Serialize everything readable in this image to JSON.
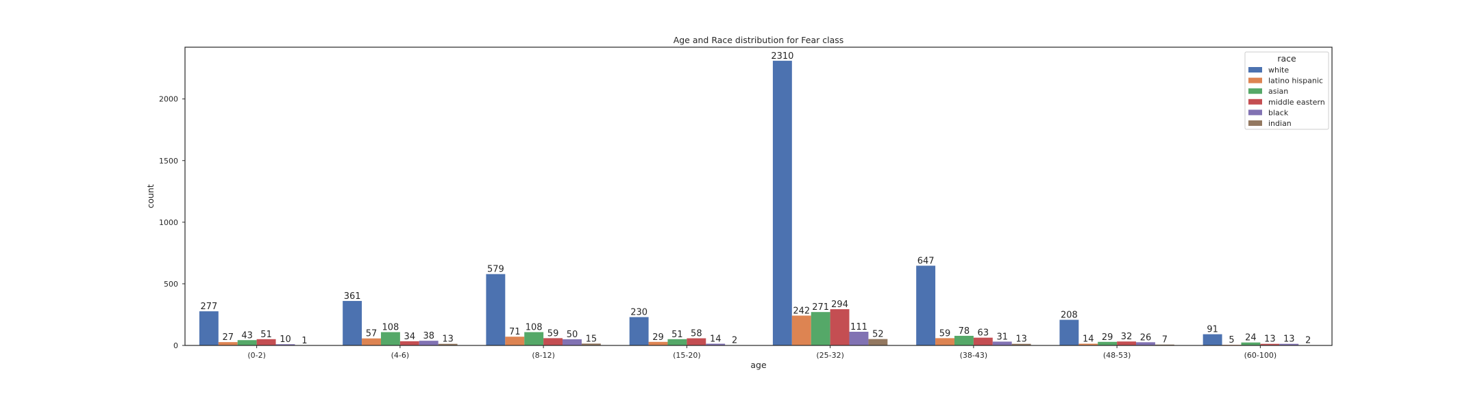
{
  "chart_data": {
    "type": "bar",
    "title": "Age and Race distribution for Fear class",
    "xlabel": "age",
    "ylabel": "count",
    "ylim": [
      0,
      2420
    ],
    "yticks": [
      0,
      500,
      1000,
      1500,
      2000
    ],
    "grid": false,
    "legend": {
      "title": "race",
      "position": "top-right"
    },
    "categories": [
      "(0-2)",
      "(4-6)",
      "(8-12)",
      "(15-20)",
      "(25-32)",
      "(38-43)",
      "(48-53)",
      "(60-100)"
    ],
    "series": [
      {
        "name": "white",
        "color": "#4c72b0",
        "values": [
          277,
          361,
          579,
          230,
          2310,
          647,
          208,
          91
        ]
      },
      {
        "name": "latino hispanic",
        "color": "#dd8452",
        "values": [
          27,
          57,
          71,
          29,
          242,
          59,
          14,
          5
        ]
      },
      {
        "name": "asian",
        "color": "#55a868",
        "values": [
          43,
          108,
          108,
          51,
          271,
          78,
          29,
          24
        ]
      },
      {
        "name": "middle eastern",
        "color": "#c44e52",
        "values": [
          51,
          34,
          59,
          58,
          294,
          63,
          32,
          13
        ]
      },
      {
        "name": "black",
        "color": "#8172b3",
        "values": [
          10,
          38,
          50,
          14,
          111,
          31,
          26,
          13
        ]
      },
      {
        "name": "indian",
        "color": "#937860",
        "values": [
          1,
          13,
          15,
          2,
          52,
          13,
          7,
          2
        ]
      }
    ]
  }
}
